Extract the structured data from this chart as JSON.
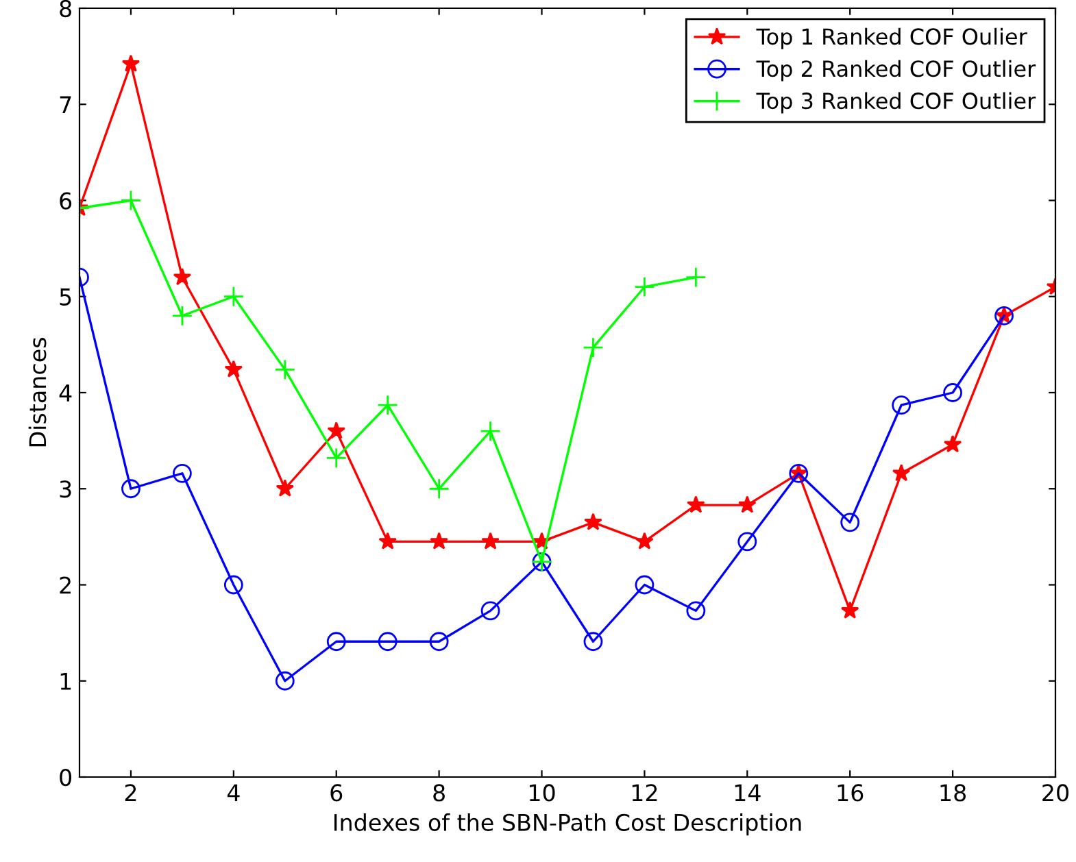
{
  "chart_data": {
    "type": "line",
    "xlabel": "Indexes of the SBN-Path Cost Description",
    "ylabel": "Distances",
    "x": [
      1,
      2,
      3,
      4,
      5,
      6,
      7,
      8,
      9,
      10,
      11,
      12,
      13,
      14,
      15,
      16,
      17,
      18,
      19,
      20
    ],
    "xlim": [
      1,
      20
    ],
    "xticks": [
      2,
      4,
      6,
      8,
      10,
      12,
      14,
      16,
      18,
      20
    ],
    "ylim": [
      0,
      8
    ],
    "yticks": [
      0,
      1,
      2,
      3,
      4,
      5,
      6,
      7,
      8
    ],
    "grid": false,
    "legend": "top right",
    "line_style": "solid",
    "series": [
      {
        "name": "Top 1 Ranked COF Oulier",
        "color": "#ff0000",
        "marker": "star",
        "values": [
          5.92,
          7.42,
          5.2,
          4.24,
          3.0,
          3.6,
          2.45,
          2.45,
          2.45,
          2.45,
          2.65,
          2.45,
          2.83,
          2.83,
          3.16,
          1.73,
          3.16,
          3.46,
          4.8,
          5.1
        ]
      },
      {
        "name": "Top 2 Ranked COF Outlier",
        "color": "#0000ff",
        "marker": "circle",
        "values": [
          5.2,
          3.0,
          3.16,
          2.0,
          1.0,
          1.41,
          1.41,
          1.41,
          1.73,
          2.24,
          1.41,
          2.0,
          1.73,
          2.45,
          3.16,
          2.65,
          3.87,
          4.0,
          4.8,
          null
        ]
      },
      {
        "name": "Top 3 Ranked COF Outlier",
        "color": "#00ff00",
        "marker": "cross",
        "values": [
          5.92,
          6.0,
          4.8,
          5.0,
          4.24,
          3.32,
          3.87,
          3.0,
          3.6,
          2.24,
          4.47,
          5.1,
          5.2,
          null,
          null,
          null,
          null,
          null,
          null,
          null
        ]
      }
    ]
  }
}
